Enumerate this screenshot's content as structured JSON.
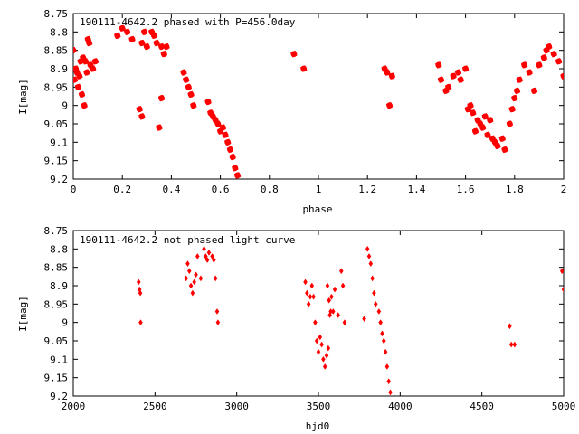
{
  "colors": {
    "points": "#ff0000",
    "axis": "#000000",
    "background": "#ffffff"
  },
  "chart_data": [
    {
      "type": "scatter",
      "title": "190111-4642.2 phased with P=456.0day",
      "xlabel": "phase",
      "ylabel": "I[mag]",
      "xlim": [
        0,
        2
      ],
      "ylim": [
        8.75,
        9.2
      ],
      "y_inverted": true,
      "grid": false,
      "xticks": [
        0,
        0.2,
        0.4,
        0.6,
        0.8,
        1,
        1.2,
        1.4,
        1.6,
        1.8,
        2
      ],
      "xtick_labels": [
        "0",
        "0.2",
        "0.4",
        "0.6",
        "0.8",
        "1",
        "1.2",
        "1.4",
        "1.6",
        "1.8",
        "2"
      ],
      "yticks": [
        8.75,
        8.8,
        8.85,
        8.9,
        8.95,
        9,
        9.05,
        9.1,
        9.15,
        9.2
      ],
      "ytick_labels": [
        "8.75",
        "8.8",
        "8.85",
        "8.9",
        "8.95",
        "9",
        "9.05",
        "9.1",
        "9.15",
        "9.2"
      ],
      "marker": "star",
      "x": [
        0.0,
        0.005,
        0.01,
        0.015,
        0.02,
        0.025,
        0.03,
        0.035,
        0.04,
        0.045,
        0.05,
        0.055,
        0.06,
        0.065,
        0.07,
        0.08,
        0.09,
        0.18,
        0.2,
        0.22,
        0.24,
        0.28,
        0.29,
        0.3,
        0.32,
        0.33,
        0.34,
        0.36,
        0.37,
        0.38,
        0.27,
        0.28,
        0.35,
        0.36,
        0.45,
        0.46,
        0.47,
        0.48,
        0.49,
        0.55,
        0.56,
        0.57,
        0.58,
        0.59,
        0.6,
        0.61,
        0.62,
        0.63,
        0.64,
        0.65,
        0.66,
        0.67,
        0.9,
        0.94,
        1.27,
        1.28,
        1.29,
        1.3,
        1.49,
        1.5,
        1.52,
        1.53,
        1.55,
        1.57,
        1.58,
        1.6,
        1.61,
        1.62,
        1.63,
        1.64,
        1.65,
        1.66,
        1.67,
        1.68,
        1.69,
        1.7,
        1.71,
        1.72,
        1.73,
        1.75,
        1.76,
        1.78,
        1.79,
        1.8,
        1.81,
        1.82,
        1.84,
        1.86,
        1.88,
        1.9,
        1.92,
        1.93,
        1.94,
        1.96,
        1.98,
        2.0
      ],
      "y": [
        8.85,
        8.93,
        8.9,
        8.91,
        8.95,
        8.92,
        8.88,
        8.97,
        8.87,
        9.0,
        8.88,
        8.91,
        8.82,
        8.83,
        8.89,
        8.9,
        8.88,
        8.81,
        8.79,
        8.8,
        8.82,
        8.83,
        8.8,
        8.84,
        8.8,
        8.81,
        8.83,
        8.84,
        8.86,
        8.84,
        9.01,
        9.03,
        9.06,
        8.98,
        8.91,
        8.93,
        8.95,
        8.97,
        9.0,
        8.99,
        9.02,
        9.03,
        9.04,
        9.05,
        9.07,
        9.06,
        9.08,
        9.1,
        9.12,
        9.14,
        9.17,
        9.19,
        8.86,
        8.9,
        8.9,
        8.91,
        9.0,
        8.92,
        8.89,
        8.93,
        8.96,
        8.95,
        8.92,
        8.91,
        8.93,
        8.9,
        9.01,
        9.0,
        9.02,
        9.07,
        9.04,
        9.05,
        9.06,
        9.03,
        9.08,
        9.04,
        9.09,
        9.1,
        9.11,
        9.09,
        9.12,
        9.05,
        9.01,
        8.98,
        8.96,
        8.93,
        8.89,
        8.91,
        8.96,
        8.89,
        8.87,
        8.85,
        8.84,
        8.86,
        8.88,
        8.92
      ]
    },
    {
      "type": "scatter",
      "title": "190111-4642.2 not phased light curve",
      "xlabel": "hjd0",
      "ylabel": "I[mag]",
      "xlim": [
        2000,
        5000
      ],
      "ylim": [
        8.75,
        9.2
      ],
      "y_inverted": true,
      "grid": false,
      "xticks": [
        2000,
        2500,
        3000,
        3500,
        4000,
        4500,
        5000
      ],
      "xtick_labels": [
        "2000",
        "2500",
        "3000",
        "3500",
        "4000",
        "4500",
        "5000"
      ],
      "yticks": [
        8.75,
        8.8,
        8.85,
        8.9,
        8.95,
        9,
        9.05,
        9.1,
        9.15,
        9.2
      ],
      "ytick_labels": [
        "8.75",
        "8.8",
        "8.85",
        "8.9",
        "8.95",
        "9",
        "9.05",
        "9.1",
        "9.15",
        "9.2"
      ],
      "marker": "diamond",
      "x": [
        2400,
        2405,
        2410,
        2412,
        2690,
        2700,
        2710,
        2720,
        2730,
        2740,
        2750,
        2760,
        2780,
        2800,
        2810,
        2820,
        2830,
        2850,
        2860,
        2870,
        2880,
        2885,
        3420,
        3430,
        3440,
        3450,
        3460,
        3470,
        3480,
        3490,
        3500,
        3510,
        3520,
        3530,
        3540,
        3550,
        3560,
        3570,
        3580,
        3590,
        3600,
        3620,
        3640,
        3650,
        3660,
        3780,
        3800,
        3810,
        3820,
        3830,
        3840,
        3850,
        3870,
        3880,
        3890,
        3900,
        3910,
        3920,
        3930,
        3940,
        4670,
        4680,
        4700,
        5000,
        4990,
        3555,
        3565,
        3575
      ],
      "y": [
        8.89,
        8.91,
        8.92,
        9.0,
        8.88,
        8.84,
        8.86,
        8.9,
        8.92,
        8.89,
        8.87,
        8.82,
        8.88,
        8.8,
        8.82,
        8.83,
        8.81,
        8.82,
        8.83,
        8.88,
        8.97,
        9.0,
        8.89,
        8.92,
        8.95,
        8.93,
        8.9,
        8.93,
        9.0,
        9.05,
        9.08,
        9.04,
        9.06,
        9.1,
        9.12,
        9.09,
        9.07,
        8.98,
        8.93,
        8.97,
        8.91,
        8.98,
        8.86,
        8.9,
        9.0,
        8.99,
        8.8,
        8.82,
        8.84,
        8.88,
        8.92,
        8.95,
        8.97,
        9.0,
        9.03,
        9.05,
        9.08,
        9.12,
        9.16,
        9.19,
        9.01,
        9.06,
        9.06,
        8.91,
        8.86,
        8.9,
        8.94,
        8.97
      ]
    }
  ]
}
